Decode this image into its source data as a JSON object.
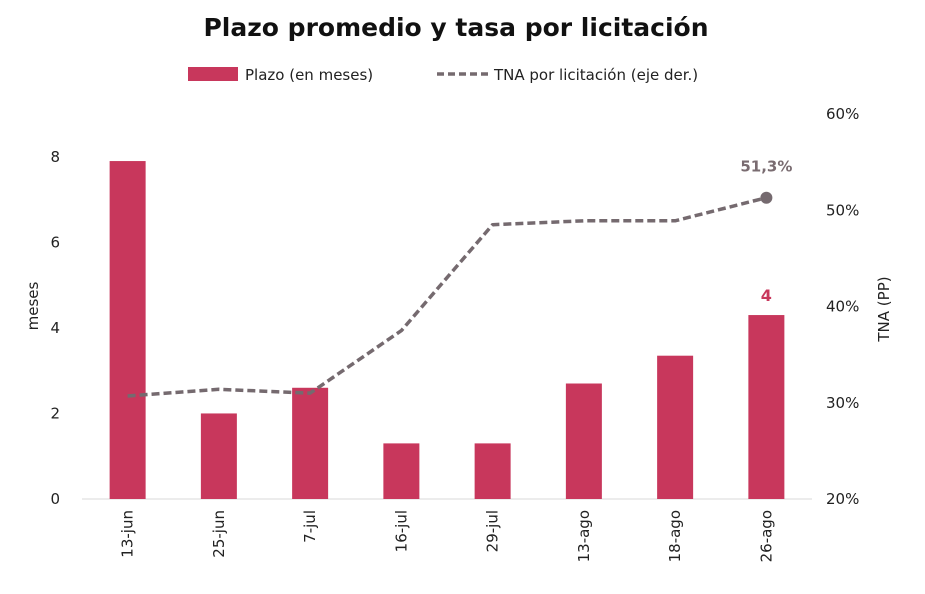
{
  "chart_data": {
    "type": "bar+line",
    "title": "Plazo promedio y tasa por licitación",
    "categories": [
      "13-jun",
      "25-jun",
      "7-jul",
      "16-jul",
      "29-jul",
      "13-ago",
      "18-ago",
      "26-ago"
    ],
    "series": [
      {
        "name": "Plazo (en meses)",
        "type": "bar",
        "axis": "left",
        "values": [
          7.9,
          2.0,
          2.6,
          1.3,
          1.3,
          2.7,
          3.35,
          4.3
        ],
        "color": "#c8375c"
      },
      {
        "name": "TNA por licitación (eje der.)",
        "type": "line",
        "style": "dashed",
        "axis": "right",
        "values": [
          30.7,
          31.4,
          31.0,
          37.5,
          48.5,
          48.9,
          48.9,
          51.3
        ],
        "color": "#756a6f"
      }
    ],
    "left_axis": {
      "label": "meses",
      "min": 0,
      "max": 9,
      "ticks": [
        "0",
        "2",
        "4",
        "6",
        "8"
      ],
      "tick_values": [
        0,
        2,
        4,
        6,
        8
      ]
    },
    "right_axis": {
      "label": "TNA (PP)",
      "min": 20,
      "max": 60,
      "ticks": [
        "20%",
        "30%",
        "40%",
        "50%",
        "60%"
      ],
      "tick_values": [
        20,
        30,
        40,
        50,
        60
      ]
    },
    "annotations": {
      "line_last": "51,3%",
      "bar_last": "4"
    },
    "legend_position": "top-center"
  }
}
